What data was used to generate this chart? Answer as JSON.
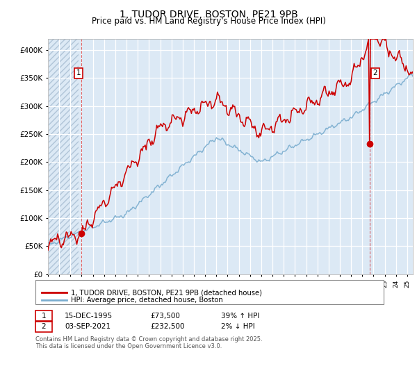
{
  "title": "1, TUDOR DRIVE, BOSTON, PE21 9PB",
  "subtitle": "Price paid vs. HM Land Registry's House Price Index (HPI)",
  "background_color": "#ffffff",
  "plot_bg_color": "#dce9f5",
  "grid_color": "#ffffff",
  "red_line_color": "#cc0000",
  "blue_line_color": "#7aadcf",
  "hatch_area_end": 1995.75,
  "sale1_date_num": 1995.96,
  "sale1_price": 73500,
  "sale1_label": "1",
  "sale2_date_num": 2021.67,
  "sale2_price": 232500,
  "sale2_label": "2",
  "legend_entries": [
    "1, TUDOR DRIVE, BOSTON, PE21 9PB (detached house)",
    "HPI: Average price, detached house, Boston"
  ],
  "footer_lines": [
    "Contains HM Land Registry data © Crown copyright and database right 2025.",
    "This data is licensed under the Open Government Licence v3.0."
  ],
  "table_rows": [
    [
      "1",
      "15-DEC-1995",
      "£73,500",
      "39% ↑ HPI"
    ],
    [
      "2",
      "03-SEP-2021",
      "£232,500",
      "2% ↓ HPI"
    ]
  ],
  "xmin": 1993,
  "xmax": 2025.5,
  "ymin": 0,
  "ymax": 420000
}
